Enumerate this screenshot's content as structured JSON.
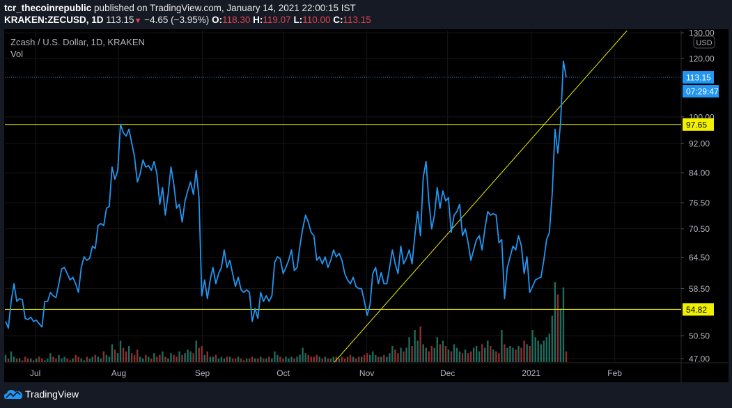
{
  "header": {
    "author": "tcr_thecoinrepublic",
    "published": "published on TradingView.com, January 14, 2021 22:00:15 IST",
    "symbol": "KRAKEN:ZECUSD, 1D",
    "last": "113.15",
    "change": "−4.65 (−3.95%)",
    "o_label": "O:",
    "o": "118.30",
    "h_label": "H:",
    "h": "119.07",
    "l_label": "L:",
    "l": "110.00",
    "c_label": "C:",
    "c": "113.15"
  },
  "legend": {
    "title": "Zcash / U.S. Dollar, 1D, KRAKEN",
    "vol": "Vol"
  },
  "footer": {
    "brand": "TradingView"
  },
  "colors": {
    "line": "#2196f3",
    "hline": "#f0f000",
    "up": "#1f6b5e",
    "down": "#8e2f2f",
    "grid": "#161616",
    "axis_text": "#b2b5be"
  },
  "chart_data": {
    "type": "line",
    "title": "Zcash / U.S. Dollar, 1D, KRAKEN",
    "scale": "log",
    "currency": "USD",
    "ylim": [
      47,
      132
    ],
    "start_date": "2020-06-20",
    "end_date": "2021-01-14",
    "y_ticks": [
      "130.00",
      "120.00",
      "100.00",
      "92.00",
      "84.00",
      "76.50",
      "70.50",
      "64.50",
      "58.50",
      "50.50",
      "47.00"
    ],
    "x_ticks": [
      {
        "label": "Jul",
        "date": "2020-07-01"
      },
      {
        "label": "Aug",
        "date": "2020-08-01"
      },
      {
        "label": "Sep",
        "date": "2020-09-01"
      },
      {
        "label": "Oct",
        "date": "2020-10-01"
      },
      {
        "label": "Nov",
        "date": "2020-11-01"
      },
      {
        "label": "Dec",
        "date": "2020-12-01"
      },
      {
        "label": "2021",
        "date": "2021-01-01"
      },
      {
        "label": "Feb",
        "date": "2021-02-01"
      }
    ],
    "close": [
      52.8,
      51.7,
      56.2,
      59.4,
      56.2,
      56.7,
      56.5,
      53.3,
      53.1,
      53.5,
      52.8,
      53,
      52.4,
      51.9,
      56.2,
      56.2,
      57.8,
      57.2,
      56.9,
      59.4,
      62.2,
      62.5,
      61.3,
      60.1,
      60.6,
      59.4,
      57.8,
      62.5,
      64.6,
      63.9,
      64.3,
      66.8,
      66.3,
      71.2,
      71.7,
      71.2,
      75.2,
      75.6,
      85.5,
      82.3,
      84.6,
      97.7,
      95.2,
      94.2,
      96.2,
      92.2,
      88.3,
      81.6,
      83.7,
      87.4,
      85.5,
      85.9,
      84.6,
      87,
      83.7,
      76.1,
      80.2,
      73.6,
      78.5,
      85.5,
      81.1,
      75.2,
      76.1,
      72,
      76.9,
      79.4,
      81.6,
      78.5,
      84.6,
      77.7,
      57.2,
      60.1,
      56.7,
      60.1,
      62.5,
      59.4,
      61.3,
      62.5,
      66,
      62.5,
      63.9,
      61.3,
      58.9,
      60.6,
      58.3,
      57.8,
      58.3,
      57.8,
      52.8,
      55,
      53.3,
      57.8,
      56.2,
      57.2,
      56.2,
      57.2,
      63.5,
      64.6,
      64.2,
      61.3,
      62.5,
      63.9,
      66,
      61.9,
      62.5,
      66.8,
      70.5,
      73.6,
      72,
      69.7,
      69,
      63.9,
      64.6,
      63.2,
      64.6,
      62.5,
      63.9,
      66,
      64.6,
      65.3,
      63.9,
      61.3,
      60.1,
      59.4,
      60.6,
      58.9,
      58.5,
      58.5,
      56.2,
      53.8,
      55.6,
      61.3,
      62.5,
      59.4,
      61.5,
      59.4,
      59.4,
      62.5,
      66,
      63.2,
      61.3,
      66.8,
      63.2,
      64.3,
      66,
      63.2,
      69,
      74.4,
      69,
      82.8,
      87,
      76.9,
      70.5,
      73.6,
      80.2,
      75.2,
      79.4,
      76.9,
      77.7,
      69.7,
      73.6,
      74.4,
      76.1,
      69,
      70.5,
      67.5,
      63.9,
      66,
      68.2,
      69,
      66,
      70.5,
      74.4,
      73.6,
      73.9,
      73.6,
      67.5,
      68.2,
      56.7,
      62.5,
      64.6,
      66.8,
      66,
      69,
      66.8,
      61.3,
      64.6,
      57.8,
      58.9,
      60.1,
      60.4,
      60.6,
      63.9,
      68.2,
      69.7,
      78.5,
      96.2,
      89.3,
      98.3,
      119,
      113.15
    ],
    "volume": [
      4,
      2,
      6,
      3,
      2,
      2,
      1,
      3,
      2,
      2,
      1,
      2,
      3,
      2,
      1,
      2,
      5,
      3,
      2,
      4,
      2,
      3,
      2,
      1,
      2,
      4,
      3,
      2,
      1,
      3,
      2,
      3,
      4,
      3,
      2,
      6,
      4,
      3,
      10,
      7,
      5,
      12,
      8,
      6,
      9,
      5,
      4,
      7,
      3,
      2,
      4,
      3,
      2,
      5,
      3,
      4,
      6,
      3,
      2,
      5,
      4,
      3,
      6,
      4,
      5,
      7,
      6,
      5,
      12,
      8,
      9,
      4,
      6,
      3,
      3,
      4,
      2,
      3,
      2,
      3,
      3,
      2,
      2,
      3,
      2,
      1,
      2,
      2,
      3,
      2,
      2,
      3,
      2,
      2,
      3,
      2,
      6,
      4,
      3,
      2,
      3,
      2,
      3,
      2,
      3,
      4,
      8,
      5,
      4,
      3,
      3,
      4,
      3,
      2,
      3,
      2,
      2,
      3,
      3,
      2,
      3,
      2,
      3,
      4,
      3,
      2,
      3,
      3,
      4,
      5,
      4,
      6,
      4,
      3,
      3,
      4,
      3,
      5,
      9,
      7,
      5,
      8,
      6,
      8,
      14,
      9,
      18,
      12,
      20,
      10,
      8,
      6,
      9,
      8,
      14,
      10,
      12,
      9,
      7,
      6,
      10,
      8,
      6,
      5,
      7,
      5,
      6,
      8,
      9,
      6,
      10,
      8,
      12,
      9,
      7,
      6,
      5,
      18,
      10,
      8,
      9,
      8,
      7,
      9,
      8,
      12,
      10,
      9,
      18,
      14,
      12,
      10,
      12,
      14,
      16,
      26,
      45,
      38,
      30,
      42,
      6
    ],
    "lines": [
      {
        "type": "horizontal",
        "price": 97.65,
        "label": "97.65"
      },
      {
        "type": "horizontal",
        "price": 54.82,
        "label": "54.82"
      },
      {
        "type": "trend",
        "from": {
          "date": "2020-10-20",
          "price": 46.5
        },
        "to": {
          "date": "2021-02-08",
          "price": 134
        }
      }
    ],
    "last_price_label": "113.15",
    "countdown": "07:29:47"
  }
}
